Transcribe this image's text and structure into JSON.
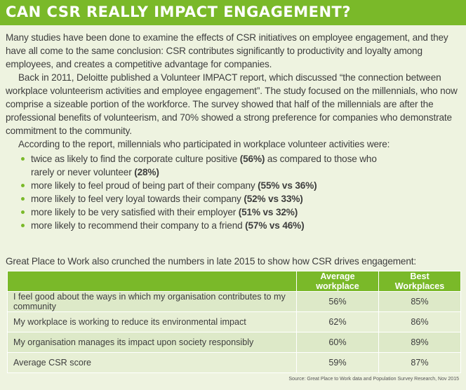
{
  "header": {
    "title": "CAN CSR REALLY IMPACT ENGAGEMENT?"
  },
  "colors": {
    "accent": "#7ab929",
    "background": "#eef3e0"
  },
  "body": {
    "p1": "Many studies have been done to examine the effects of CSR initiatives on employee engagement, and they have all come to the same conclusion: CSR contributes significantly to productivity and loyalty among employees, and creates a competitive advantage for companies.",
    "p2": "Back in 2011, Deloitte published a Volunteer IMPACT report, which discussed “the connection between workplace volunteerism activities and employee engagement”. The study focused on the millennials, who now comprise a sizeable portion of the workforce. The survey showed that half of the millennials are after the professional benefits of volunteerism, and 70% showed a strong preference for companies who demonstrate commitment to the community.",
    "p3": "According to the report, millennials who participated in workplace volunteer activities were:",
    "bullets": [
      {
        "text": "twice as likely to find the corporate culture positive ",
        "bold": "(56%)",
        "text2": " as compared to those who rarely or never volunteer ",
        "bold2": "(28%)"
      },
      {
        "text": "more likely to feel proud of being part of their company ",
        "bold": "(55% vs 36%)"
      },
      {
        "text": "more likely to feel very loyal towards their company ",
        "bold": "(52% vs 33%)"
      },
      {
        "text": "more likely to be very satisfied with their employer ",
        "bold": "(51% vs 32%)"
      },
      {
        "text": "more likely to recommend their company to a friend ",
        "bold": "(57% vs 46%)"
      }
    ],
    "table_intro": "Great Place to Work also crunched the numbers in late 2015 to show how CSR drives engagement:"
  },
  "table": {
    "columns": [
      "",
      "Average workplace",
      "Best Workplaces"
    ],
    "rows": [
      [
        "I feel good about the ways in which my organisation contributes to my community",
        "56%",
        "85%"
      ],
      [
        "My workplace is working to reduce its environmental impact",
        "62%",
        "86%"
      ],
      [
        "My organisation manages its impact upon society responsibly",
        "60%",
        "89%"
      ],
      [
        "Average CSR score",
        "59%",
        "87%"
      ]
    ]
  },
  "source": "Source: Great Place to Work data and Population Survey Research, Nov 2015"
}
